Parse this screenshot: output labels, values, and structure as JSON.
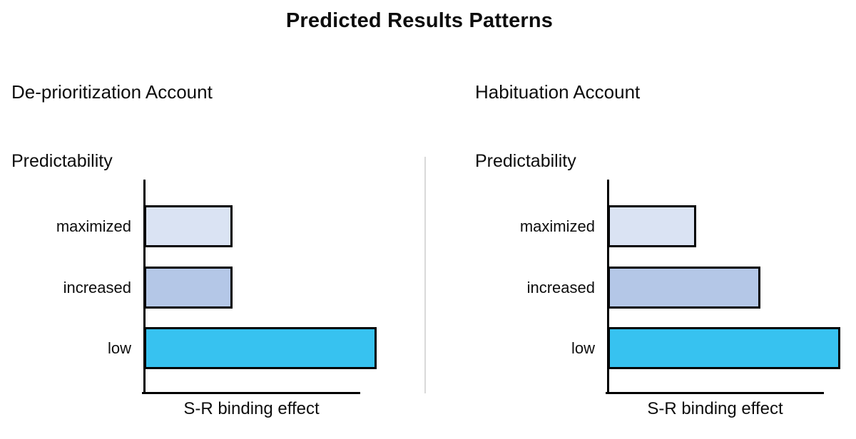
{
  "title": "Predicted Results Patterns",
  "colors": {
    "maximized": "#dae3f3",
    "increased": "#b4c7e7",
    "low": "#37c2f0",
    "bar_border": "#000000",
    "axis": "#000000",
    "divider": "#d9d9d9",
    "text": "#0d0d0d"
  },
  "panels": [
    {
      "title": "De-prioritization Account",
      "y_axis_label": "Predictability",
      "x_axis_label": "S-R binding effect",
      "bars": [
        {
          "category": "maximized",
          "value": 0.41
        },
        {
          "category": "increased",
          "value": 0.41
        },
        {
          "category": "low",
          "value": 1.08
        }
      ]
    },
    {
      "title": "Habituation Account",
      "y_axis_label": "Predictability",
      "x_axis_label": "S-R binding effect",
      "bars": [
        {
          "category": "maximized",
          "value": 0.41
        },
        {
          "category": "increased",
          "value": 0.71
        },
        {
          "category": "low",
          "value": 1.08
        }
      ]
    }
  ],
  "chart_data": [
    {
      "type": "bar",
      "orientation": "horizontal",
      "title": "De-prioritization Account",
      "categories": [
        "maximized",
        "increased",
        "low"
      ],
      "values": [
        0.41,
        0.41,
        1.08
      ],
      "value_note": "qualitative bar lengths estimated as fraction of x-axis length; no numeric scale shown; 'low' bar extends past end of axis",
      "xlabel": "S-R binding effect",
      "ylabel": "Predictability",
      "xlim": [
        0,
        1
      ],
      "grid": false,
      "legend": false,
      "bar_colors": [
        "#dae3f3",
        "#b4c7e7",
        "#37c2f0"
      ]
    },
    {
      "type": "bar",
      "orientation": "horizontal",
      "title": "Habituation Account",
      "categories": [
        "maximized",
        "increased",
        "low"
      ],
      "values": [
        0.41,
        0.71,
        1.08
      ],
      "value_note": "qualitative bar lengths estimated as fraction of x-axis length; no numeric scale shown; 'low' bar extends past end of axis",
      "xlabel": "S-R binding effect",
      "ylabel": "Predictability",
      "xlim": [
        0,
        1
      ],
      "grid": false,
      "legend": false,
      "bar_colors": [
        "#dae3f3",
        "#b4c7e7",
        "#37c2f0"
      ]
    }
  ]
}
